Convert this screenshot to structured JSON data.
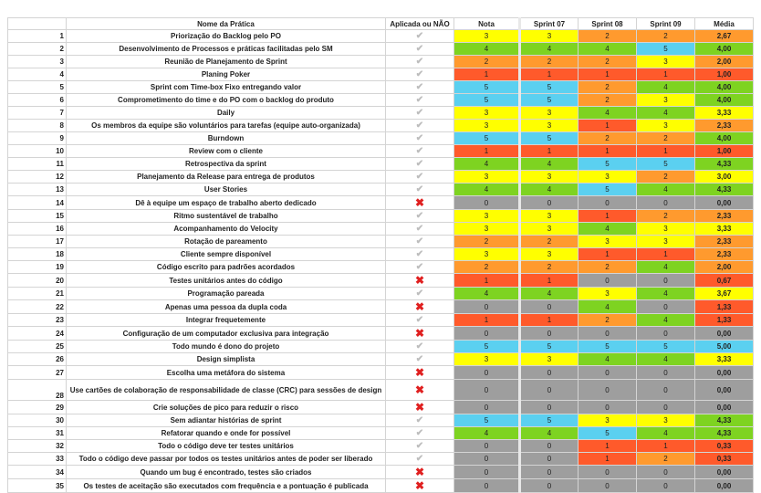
{
  "headers": {
    "num": "",
    "name": "Nome da Prática",
    "applied": "Aplicada ou NÃO",
    "nota": "Nota",
    "s7": "Sprint 07",
    "s8": "Sprint 08",
    "s9": "Sprint 09",
    "media": "Média"
  },
  "colors": {
    "0": "#9e9e9e",
    "1": "#ff5a2b",
    "2": "#ff9a2e",
    "3": "#ffff00",
    "4": "#7ed321",
    "5": "#5bd0f0",
    "avg_low": "#ff5a2b",
    "avg_mid": "#ff9a2e",
    "avg_yellow": "#ffff00",
    "avg_high": "#7ed321",
    "avg_top": "#5bd0f0"
  },
  "icons": {
    "applied": "check-icon",
    "not_applied": "cross-icon"
  },
  "rows": [
    {
      "n": "1",
      "name": "Priorização do Backlog pelo PO",
      "ok": true,
      "v": [
        3,
        3,
        2,
        2
      ],
      "avg": "2,67"
    },
    {
      "n": "2",
      "name": "Desenvolvimento de Processos e práticas facilitadas pelo SM",
      "ok": true,
      "v": [
        4,
        4,
        4,
        5
      ],
      "avg": "4,00"
    },
    {
      "n": "3",
      "name": "Reunião de Planejamento de Sprint",
      "ok": true,
      "v": [
        2,
        2,
        2,
        3
      ],
      "avg": "2,00"
    },
    {
      "n": "4",
      "name": "Planing Poker",
      "ok": true,
      "v": [
        1,
        1,
        1,
        1
      ],
      "avg": "1,00"
    },
    {
      "n": "5",
      "name": "Sprint com Time-box Fixo entregando valor",
      "ok": true,
      "v": [
        5,
        5,
        2,
        4
      ],
      "avg": "4,00"
    },
    {
      "n": "6",
      "name": "Comprometimento do time e do PO com o backlog do produto",
      "ok": true,
      "v": [
        5,
        5,
        2,
        3
      ],
      "avg": "4,00"
    },
    {
      "n": "7",
      "name": "Daily",
      "ok": true,
      "v": [
        3,
        3,
        4,
        4
      ],
      "avg": "3,33"
    },
    {
      "n": "8",
      "name": "Os membros da equipe são voluntários para tarefas (equipe auto-organizada)",
      "ok": true,
      "v": [
        3,
        3,
        1,
        3
      ],
      "avg": "2,33"
    },
    {
      "n": "9",
      "name": "Burndown",
      "ok": true,
      "v": [
        5,
        5,
        2,
        2
      ],
      "avg": "4,00"
    },
    {
      "n": "10",
      "name": "Review com o cliente",
      "ok": true,
      "v": [
        1,
        1,
        1,
        1
      ],
      "avg": "1,00"
    },
    {
      "n": "11",
      "name": "Retrospectiva da sprint",
      "ok": true,
      "v": [
        4,
        4,
        5,
        5
      ],
      "avg": "4,33"
    },
    {
      "n": "12",
      "name": "Planejamento da Release para entrega de produtos",
      "ok": true,
      "v": [
        3,
        3,
        3,
        2
      ],
      "avg": "3,00"
    },
    {
      "n": "13",
      "name": "User Stories",
      "ok": true,
      "v": [
        4,
        4,
        5,
        4
      ],
      "avg": "4,33"
    },
    {
      "n": "14",
      "name": "Dê à equipe um espaço de trabalho aberto dedicado",
      "ok": false,
      "v": [
        0,
        0,
        0,
        0
      ],
      "avg": "0,00"
    },
    {
      "n": "15",
      "name": "Ritmo sustentável de trabalho",
      "ok": true,
      "v": [
        3,
        3,
        1,
        2
      ],
      "avg": "2,33"
    },
    {
      "n": "16",
      "name": "Acompanhamento do Velocity",
      "ok": true,
      "v": [
        3,
        3,
        4,
        3
      ],
      "avg": "3,33"
    },
    {
      "n": "17",
      "name": "Rotação de pareamento",
      "ok": true,
      "v": [
        2,
        2,
        3,
        3
      ],
      "avg": "2,33"
    },
    {
      "n": "18",
      "name": "Cliente sempre disponível",
      "ok": true,
      "v": [
        3,
        3,
        1,
        1
      ],
      "avg": "2,33"
    },
    {
      "n": "19",
      "name": "Código escrito para padrões acordados",
      "ok": true,
      "v": [
        2,
        2,
        2,
        4
      ],
      "avg": "2,00"
    },
    {
      "n": "20",
      "name": "Testes unitários antes do código",
      "ok": false,
      "v": [
        1,
        1,
        0,
        0
      ],
      "avg": "0,67"
    },
    {
      "n": "21",
      "name": "Programação pareada",
      "ok": true,
      "v": [
        4,
        4,
        3,
        4
      ],
      "avg": "3,67"
    },
    {
      "n": "22",
      "name": "Apenas uma pessoa da dupla coda",
      "ok": false,
      "v": [
        0,
        0,
        4,
        0
      ],
      "avg": "1,33"
    },
    {
      "n": "23",
      "name": "Integrar frequetemente",
      "ok": true,
      "v": [
        1,
        1,
        2,
        4
      ],
      "avg": "1,33"
    },
    {
      "n": "24",
      "name": "Configuração de um computador exclusiva para integração",
      "ok": false,
      "v": [
        0,
        0,
        0,
        0
      ],
      "avg": "0,00"
    },
    {
      "n": "25",
      "name": "Todo mundo é dono do projeto",
      "ok": true,
      "v": [
        5,
        5,
        5,
        5
      ],
      "avg": "5,00"
    },
    {
      "n": "26",
      "name": "Design simplista",
      "ok": true,
      "v": [
        3,
        3,
        4,
        4
      ],
      "avg": "3,33"
    },
    {
      "n": "27",
      "name": "Escolha uma metáfora do sistema",
      "ok": false,
      "v": [
        0,
        0,
        0,
        0
      ],
      "avg": "0,00"
    },
    {
      "n": "28",
      "name": "Use cartões de colaboração de responsabilidade de classe (CRC) para sessões de design",
      "ok": false,
      "v": [
        0,
        0,
        0,
        0
      ],
      "avg": "0,00",
      "tall": true
    },
    {
      "n": "29",
      "name": "Crie soluções de pico para reduzir o risco",
      "ok": false,
      "v": [
        0,
        0,
        0,
        0
      ],
      "avg": "0,00"
    },
    {
      "n": "30",
      "name": "Sem adiantar histórias de sprint",
      "ok": true,
      "v": [
        5,
        5,
        3,
        3
      ],
      "avg": "4,33"
    },
    {
      "n": "31",
      "name": "Refatorar quando e onde for possível",
      "ok": true,
      "v": [
        4,
        4,
        5,
        4
      ],
      "avg": "4,33"
    },
    {
      "n": "32",
      "name": "Todo o código deve ter testes unitários",
      "ok": true,
      "v": [
        0,
        0,
        1,
        1
      ],
      "avg": "0,33"
    },
    {
      "n": "33",
      "name": "Todo o código deve passar por todos os testes unitários antes de poder ser liberado",
      "ok": true,
      "v": [
        0,
        0,
        1,
        2
      ],
      "avg": "0,33"
    },
    {
      "n": "34",
      "name": "Quando um bug é encontrado, testes são criados",
      "ok": false,
      "v": [
        0,
        0,
        0,
        0
      ],
      "avg": "0,00"
    },
    {
      "n": "35",
      "name": "Os testes de aceitação são executados com frequência e a pontuação é publicada",
      "ok": false,
      "v": [
        0,
        0,
        0,
        0
      ],
      "avg": "0,00"
    }
  ]
}
